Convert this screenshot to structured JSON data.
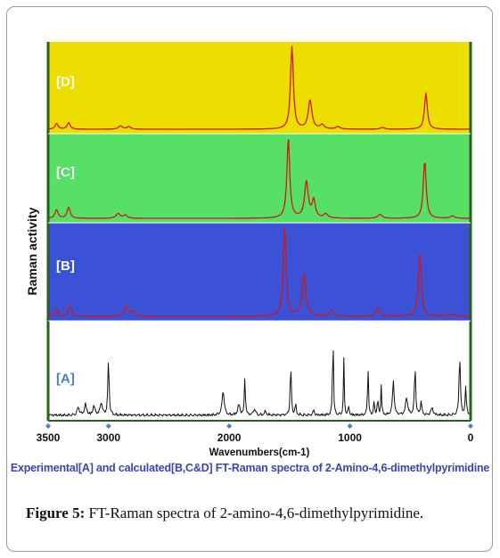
{
  "figure_caption": {
    "label": "Figure 5:",
    "text": "FT-Raman spectra of 2-amino-4,6-dimethylpyrimidine."
  },
  "colors": {
    "panel_D": "#ebde00",
    "panel_C": "#56e066",
    "panel_B": "#3b51d6",
    "panel_A": "#ffffff",
    "calc_line": "#d01818",
    "exp_line": "#111111",
    "frame": "#2c5f20",
    "axis_marker": "#4b7fc4",
    "subtitle": "#3b44b6"
  },
  "chart_data": {
    "type": "line",
    "title": "Experimental[A] and calculated[B,C&D] FT-Raman spectra of 2-Amino-4,6-dimethylpyrimidine",
    "xlabel": "Wavenumbers(cm-1)",
    "ylabel": "Raman activity",
    "xlim": [
      3500,
      0
    ],
    "xticks": [
      3500,
      3000,
      2000,
      1000,
      0
    ],
    "grid": false,
    "legend": "none",
    "series": [
      {
        "name": "[D]",
        "panel_color": "panel_D",
        "line_color": "calc_line",
        "peaks": [
          {
            "x": 3430,
            "h": 0.07,
            "w": 15
          },
          {
            "x": 3330,
            "h": 0.08,
            "w": 15
          },
          {
            "x": 2900,
            "h": 0.04,
            "w": 20
          },
          {
            "x": 2830,
            "h": 0.03,
            "w": 18
          },
          {
            "x": 1480,
            "h": 1.0,
            "w": 14
          },
          {
            "x": 1330,
            "h": 0.35,
            "w": 18
          },
          {
            "x": 1230,
            "h": 0.05,
            "w": 20
          },
          {
            "x": 1100,
            "h": 0.03,
            "w": 20
          },
          {
            "x": 730,
            "h": 0.02,
            "w": 20
          },
          {
            "x": 370,
            "h": 0.44,
            "w": 14
          }
        ]
      },
      {
        "name": "[C]",
        "panel_color": "panel_C",
        "line_color": "calc_line",
        "peaks": [
          {
            "x": 3430,
            "h": 0.11,
            "w": 15
          },
          {
            "x": 3330,
            "h": 0.14,
            "w": 15
          },
          {
            "x": 2920,
            "h": 0.06,
            "w": 20
          },
          {
            "x": 2860,
            "h": 0.04,
            "w": 18
          },
          {
            "x": 1510,
            "h": 1.0,
            "w": 14
          },
          {
            "x": 1360,
            "h": 0.45,
            "w": 18
          },
          {
            "x": 1300,
            "h": 0.22,
            "w": 16
          },
          {
            "x": 1200,
            "h": 0.05,
            "w": 20
          },
          {
            "x": 750,
            "h": 0.05,
            "w": 20
          },
          {
            "x": 380,
            "h": 0.72,
            "w": 14
          },
          {
            "x": 150,
            "h": 0.03,
            "w": 20
          }
        ]
      },
      {
        "name": "[B]",
        "panel_color": "panel_B",
        "line_color": "calc_line",
        "peaks": [
          {
            "x": 3430,
            "h": 0.08,
            "w": 15
          },
          {
            "x": 3320,
            "h": 0.12,
            "w": 15
          },
          {
            "x": 2850,
            "h": 0.11,
            "w": 20
          },
          {
            "x": 2790,
            "h": 0.05,
            "w": 18
          },
          {
            "x": 1540,
            "h": 1.0,
            "w": 14
          },
          {
            "x": 1380,
            "h": 0.47,
            "w": 18
          },
          {
            "x": 1150,
            "h": 0.06,
            "w": 20
          },
          {
            "x": 770,
            "h": 0.09,
            "w": 20
          },
          {
            "x": 420,
            "h": 0.72,
            "w": 14
          },
          {
            "x": 150,
            "h": 0.03,
            "w": 20
          }
        ]
      },
      {
        "name": "[A]",
        "panel_color": "panel_A",
        "line_color": "exp_line",
        "peaks": [
          {
            "x": 3250,
            "h": 0.09,
            "w": 10
          },
          {
            "x": 3190,
            "h": 0.12,
            "w": 10
          },
          {
            "x": 3120,
            "h": 0.1,
            "w": 10
          },
          {
            "x": 3060,
            "h": 0.14,
            "w": 10
          },
          {
            "x": 3000,
            "h": 0.62,
            "w": 6
          },
          {
            "x": 2050,
            "h": 0.28,
            "w": 10
          },
          {
            "x": 1920,
            "h": 0.12,
            "w": 10
          },
          {
            "x": 1870,
            "h": 0.42,
            "w": 5
          },
          {
            "x": 1790,
            "h": 0.07,
            "w": 10
          },
          {
            "x": 1700,
            "h": 0.04,
            "w": 10
          },
          {
            "x": 1490,
            "h": 0.6,
            "w": 5
          },
          {
            "x": 1450,
            "h": 0.12,
            "w": 6
          },
          {
            "x": 1300,
            "h": 0.06,
            "w": 6
          },
          {
            "x": 1140,
            "h": 1.0,
            "w": 4
          },
          {
            "x": 1050,
            "h": 0.62,
            "w": 4
          },
          {
            "x": 1010,
            "h": 0.1,
            "w": 5
          },
          {
            "x": 850,
            "h": 0.6,
            "w": 4
          },
          {
            "x": 800,
            "h": 0.14,
            "w": 5
          },
          {
            "x": 770,
            "h": 0.18,
            "w": 5
          },
          {
            "x": 740,
            "h": 0.34,
            "w": 4
          },
          {
            "x": 640,
            "h": 0.38,
            "w": 8
          },
          {
            "x": 530,
            "h": 0.2,
            "w": 10
          },
          {
            "x": 460,
            "h": 0.55,
            "w": 6
          },
          {
            "x": 410,
            "h": 0.16,
            "w": 6
          },
          {
            "x": 320,
            "h": 0.08,
            "w": 10
          },
          {
            "x": 90,
            "h": 0.7,
            "w": 6
          },
          {
            "x": 40,
            "h": 0.3,
            "w": 6
          }
        ]
      }
    ]
  }
}
